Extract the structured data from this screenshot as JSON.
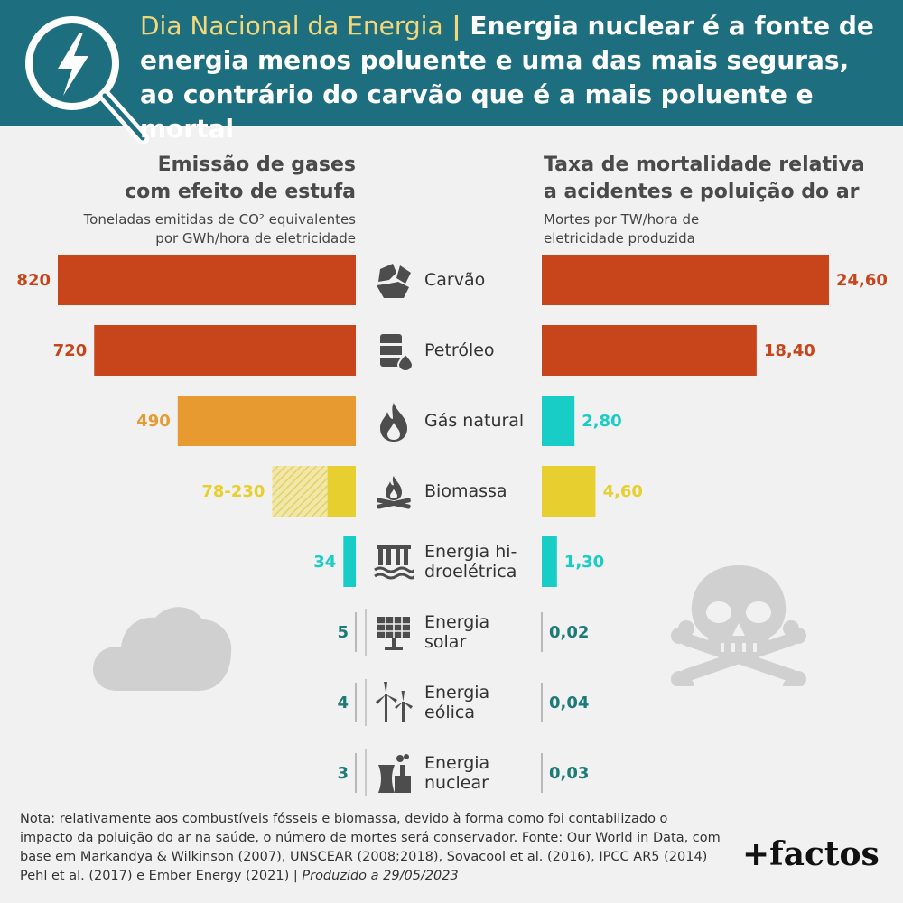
{
  "header": {
    "kicker": "Dia Nacional da Energia",
    "separator": "|",
    "title": "Energia nuclear é a fonte de energia menos poluente e uma das mais seguras, ao contrário do carvão que é a mais poluente e mortal"
  },
  "left_chart": {
    "title_line1": "Emissão de gases",
    "title_line2": "com efeito de estufa",
    "subtitle_line1": "Toneladas emitidas de CO² equivalentes",
    "subtitle_line2": "por GWh/hora de eletricidade"
  },
  "right_chart": {
    "title_line1": "Taxa de mortalidade relativa",
    "title_line2": "a acidentes e poluição do ar",
    "subtitle_line1": "Mortes por TW/hora de",
    "subtitle_line2": "eletricidade produzida"
  },
  "colors": {
    "header_bg": "#1d6f80",
    "kicker": "#f4d77a",
    "red": "#c8451b",
    "orange": "#e79a2f",
    "yellow": "#e7cf2f",
    "teal": "#17cdc6",
    "dark_teal": "#1c7a78",
    "background": "#f1f1f1"
  },
  "chart_data": [
    {
      "type": "bar",
      "orientation": "horizontal",
      "title": "Emissão de gases com efeito de estufa",
      "subtitle": "Toneladas emitidas de CO² equivalentes por GWh/hora de eletricidade",
      "categories": [
        "Carvão",
        "Petróleo",
        "Gás natural",
        "Biomassa",
        "Energia hidroelétrica",
        "Energia solar",
        "Energia eólica",
        "Energia nuclear"
      ],
      "values": [
        820,
        720,
        490,
        230,
        34,
        5,
        4,
        3
      ],
      "value_labels": [
        "820",
        "720",
        "490",
        "78-230",
        "34",
        "5",
        "4",
        "3"
      ],
      "range_low": {
        "Biomassa": 78
      },
      "bar_colors": [
        "red",
        "red",
        "orange",
        "yellow",
        "teal",
        "dark_teal",
        "dark_teal",
        "dark_teal"
      ],
      "grid": false
    },
    {
      "type": "bar",
      "orientation": "horizontal",
      "title": "Taxa de mortalidade relativa a acidentes e poluição do ar",
      "subtitle": "Mortes por TW/hora de eletricidade produzida",
      "categories": [
        "Carvão",
        "Petróleo",
        "Gás natural",
        "Biomassa",
        "Energia hidroelétrica",
        "Energia solar",
        "Energia eólica",
        "Energia nuclear"
      ],
      "values": [
        24.6,
        18.4,
        2.8,
        4.6,
        1.3,
        0.02,
        0.04,
        0.03
      ],
      "value_labels": [
        "24,60",
        "18,40",
        "2,80",
        "4,60",
        "1,30",
        "0,02",
        "0,04",
        "0,03"
      ],
      "bar_colors": [
        "red",
        "red",
        "teal",
        "yellow",
        "teal",
        "dark_teal",
        "dark_teal",
        "dark_teal"
      ],
      "grid": false
    }
  ],
  "categories_display": [
    {
      "line1": "Carvão",
      "line2": "",
      "icon": "coal-icon"
    },
    {
      "line1": "Petróleo",
      "line2": "",
      "icon": "oil-barrel-icon"
    },
    {
      "line1": "Gás natural",
      "line2": "",
      "icon": "flame-icon"
    },
    {
      "line1": "Biomassa",
      "line2": "",
      "icon": "campfire-icon"
    },
    {
      "line1": "Energia hi-",
      "line2": "droelétrica",
      "icon": "dam-icon"
    },
    {
      "line1": "Energia",
      "line2": "solar",
      "icon": "solar-panel-icon"
    },
    {
      "line1": "Energia",
      "line2": "eólica",
      "icon": "wind-turbine-icon"
    },
    {
      "line1": "Energia",
      "line2": "nuclear",
      "icon": "nuclear-plant-icon"
    }
  ],
  "footnote": {
    "text": "Nota: relativamente aos combustíveis fósseis e biomassa, devido à forma como foi contabilizado o impacto da poluição do ar na saúde, o número de mortes será conservador. Fonte: Our World in Data, com base em Markandya & Wilkinson (2007), UNSCEAR (2008;2018), Sovacool et al. (2016), IPCC AR5 (2014) Pehl et al. (2017) e Ember Energy (2021) | ",
    "date": "Produzido a 29/05/2023"
  },
  "brand": "+factos",
  "icons": [
    "search-lightning-icon",
    "cloud-icon",
    "skull-crossbones-icon"
  ]
}
